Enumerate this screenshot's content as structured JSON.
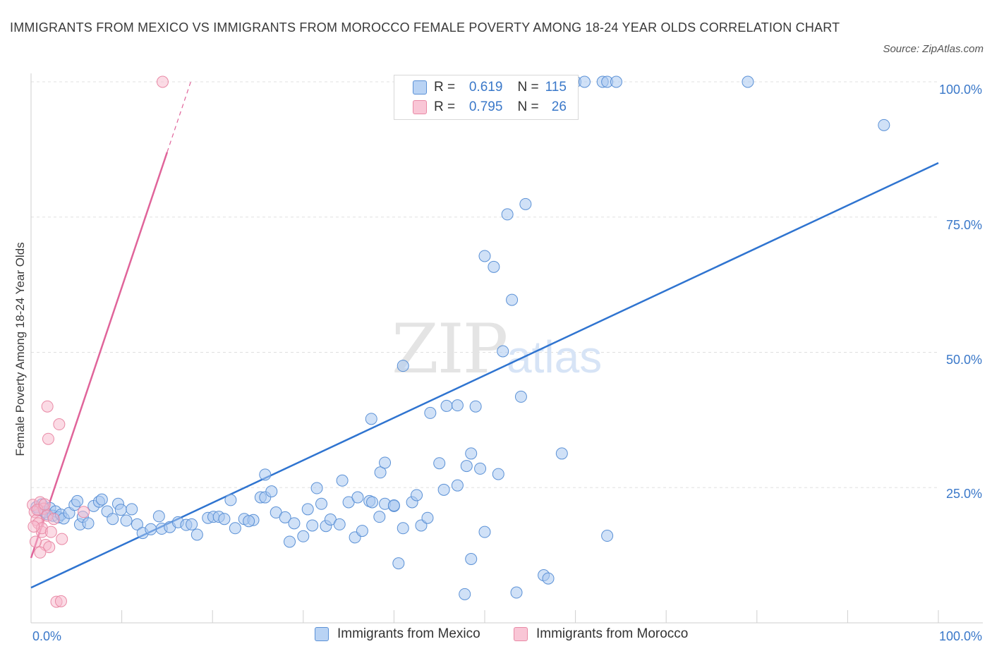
{
  "title": "IMMIGRANTS FROM MEXICO VS IMMIGRANTS FROM MOROCCO FEMALE POVERTY AMONG 18-24 YEAR OLDS CORRELATION CHART",
  "source": "Source: ZipAtlas.com",
  "watermark": {
    "zip": "ZIP",
    "atlas": "atlas"
  },
  "stats": [
    {
      "r_label": "R =",
      "r_value": "0.619",
      "n_label": "N =",
      "n_value": "115"
    },
    {
      "r_label": "R =",
      "r_value": "0.795",
      "n_label": "N =",
      "n_value": "26"
    }
  ],
  "colors": {
    "mexico_fill": "#a9c8f0",
    "mexico_stroke": "#5b91d6",
    "mexico_line": "#2f74d0",
    "morocco_fill": "#f7b8cb",
    "morocco_stroke": "#e98aa6",
    "morocco_line": "#e0649a",
    "tick_label": "#3a78c9",
    "grid": "#e0e0e0"
  },
  "chart_data": {
    "type": "scatter",
    "title": "IMMIGRANTS FROM MEXICO VS IMMIGRANTS FROM MOROCCO FEMALE POVERTY AMONG 18-24 YEAR OLDS CORRELATION CHART",
    "xlabel": "",
    "ylabel": "Female Poverty Among 18-24 Year Olds",
    "xlim": [
      0,
      100
    ],
    "ylim": [
      0,
      100
    ],
    "x_tick_labels": [
      "0.0%",
      "100.0%"
    ],
    "y_tick_labels": [
      "25.0%",
      "50.0%",
      "75.0%",
      "100.0%"
    ],
    "y_ticks": [
      25,
      50,
      75,
      100
    ],
    "grid": true,
    "legend_position": "bottom",
    "series": [
      {
        "name": "Immigrants from Mexico",
        "trendline": {
          "x": [
            0,
            100
          ],
          "y": [
            6.5,
            85
          ]
        },
        "points": [
          [
            0.6,
            21.4
          ],
          [
            0.9,
            20.8
          ],
          [
            1.2,
            21.9
          ],
          [
            1.5,
            20.5
          ],
          [
            1.8,
            20.1
          ],
          [
            2.1,
            21.2
          ],
          [
            2.4,
            19.8
          ],
          [
            2.7,
            20.6
          ],
          [
            3.0,
            19.5
          ],
          [
            3.3,
            20.0
          ],
          [
            3.6,
            19.3
          ],
          [
            4.2,
            20.3
          ],
          [
            4.8,
            21.8
          ],
          [
            5.1,
            22.5
          ],
          [
            5.4,
            18.2
          ],
          [
            5.7,
            19.6
          ],
          [
            6.3,
            18.4
          ],
          [
            6.9,
            21.6
          ],
          [
            7.5,
            22.4
          ],
          [
            7.8,
            22.8
          ],
          [
            8.4,
            20.6
          ],
          [
            9.0,
            19.2
          ],
          [
            9.6,
            22.0
          ],
          [
            9.9,
            20.9
          ],
          [
            10.5,
            18.9
          ],
          [
            11.1,
            21.0
          ],
          [
            11.7,
            18.2
          ],
          [
            12.3,
            16.6
          ],
          [
            13.2,
            17.3
          ],
          [
            14.1,
            19.7
          ],
          [
            14.4,
            17.4
          ],
          [
            15.3,
            17.7
          ],
          [
            16.2,
            18.6
          ],
          [
            17.1,
            18.1
          ],
          [
            17.7,
            18.2
          ],
          [
            18.3,
            16.3
          ],
          [
            19.5,
            19.4
          ],
          [
            20.1,
            19.6
          ],
          [
            20.7,
            19.6
          ],
          [
            21.3,
            19.2
          ],
          [
            22.0,
            22.7
          ],
          [
            22.5,
            17.5
          ],
          [
            23.5,
            19.2
          ],
          [
            24.5,
            19.0
          ],
          [
            24.0,
            18.8
          ],
          [
            25.3,
            23.2
          ],
          [
            25.8,
            23.2
          ],
          [
            25.8,
            27.4
          ],
          [
            26.5,
            24.3
          ],
          [
            27.0,
            20.4
          ],
          [
            28.0,
            19.5
          ],
          [
            28.5,
            15.0
          ],
          [
            29.0,
            18.4
          ],
          [
            30.0,
            16.0
          ],
          [
            30.5,
            21.0
          ],
          [
            31.0,
            18.0
          ],
          [
            31.5,
            24.9
          ],
          [
            32.0,
            22.0
          ],
          [
            32.5,
            17.9
          ],
          [
            33.0,
            19.1
          ],
          [
            34.0,
            18.2
          ],
          [
            35.0,
            22.3
          ],
          [
            34.3,
            26.3
          ],
          [
            35.7,
            15.8
          ],
          [
            36.0,
            23.2
          ],
          [
            36.5,
            17.0
          ],
          [
            37.3,
            22.5
          ],
          [
            37.6,
            22.3
          ],
          [
            38.4,
            19.6
          ],
          [
            39.0,
            22.0
          ],
          [
            40.0,
            21.6
          ],
          [
            37.5,
            37.7
          ],
          [
            38.5,
            27.8
          ],
          [
            39.0,
            29.6
          ],
          [
            40.5,
            11.0
          ],
          [
            41.0,
            17.5
          ],
          [
            42.0,
            22.3
          ],
          [
            42.5,
            23.6
          ],
          [
            43.0,
            18.0
          ],
          [
            43.7,
            19.4
          ],
          [
            41.0,
            47.5
          ],
          [
            44.0,
            38.8
          ],
          [
            45.0,
            29.5
          ],
          [
            45.5,
            24.6
          ],
          [
            47.0,
            25.4
          ],
          [
            48.0,
            29.0
          ],
          [
            48.5,
            31.3
          ],
          [
            49.5,
            28.5
          ],
          [
            45.8,
            40.1
          ],
          [
            47.0,
            40.2
          ],
          [
            49.0,
            40.0
          ],
          [
            47.8,
            5.3
          ],
          [
            48.5,
            11.8
          ],
          [
            50.0,
            67.8
          ],
          [
            51.0,
            65.8
          ],
          [
            51.5,
            27.5
          ],
          [
            52.0,
            50.2
          ],
          [
            52.5,
            75.5
          ],
          [
            53.0,
            59.7
          ],
          [
            53.5,
            5.6
          ],
          [
            54.0,
            41.8
          ],
          [
            54.5,
            77.4
          ],
          [
            56.5,
            8.8
          ],
          [
            57.0,
            8.2
          ],
          [
            58.5,
            31.3
          ],
          [
            60.0,
            100
          ],
          [
            61.0,
            100
          ],
          [
            63.0,
            100
          ],
          [
            63.5,
            100
          ],
          [
            64.5,
            100
          ],
          [
            79.0,
            100
          ],
          [
            94.0,
            92.0
          ],
          [
            63.5,
            16.1
          ],
          [
            50.0,
            16.8
          ],
          [
            40.0,
            21.7
          ]
        ]
      },
      {
        "name": "Immigrants from Morocco",
        "trendline": {
          "x": [
            0,
            15
          ],
          "y": [
            12.0,
            87.0
          ],
          "dashed_to": {
            "x": 17.6,
            "y": 100
          }
        },
        "points": [
          [
            0.2,
            21.8
          ],
          [
            0.4,
            20.5
          ],
          [
            0.6,
            19.0
          ],
          [
            0.8,
            18.4
          ],
          [
            1.0,
            22.3
          ],
          [
            1.2,
            16.8
          ],
          [
            1.4,
            21.1
          ],
          [
            1.6,
            14.4
          ],
          [
            1.8,
            19.8
          ],
          [
            2.0,
            14.0
          ],
          [
            0.5,
            15.0
          ],
          [
            1.0,
            13.0
          ],
          [
            1.2,
            17.5
          ],
          [
            1.8,
            40.0
          ],
          [
            1.9,
            34.0
          ],
          [
            3.1,
            36.7
          ],
          [
            2.5,
            19.2
          ],
          [
            3.4,
            15.5
          ],
          [
            2.8,
            3.9
          ],
          [
            3.3,
            4.0
          ],
          [
            5.8,
            20.5
          ],
          [
            14.5,
            100
          ],
          [
            0.3,
            17.8
          ],
          [
            0.7,
            20.9
          ],
          [
            2.2,
            16.8
          ],
          [
            1.5,
            21.9
          ]
        ]
      }
    ]
  }
}
